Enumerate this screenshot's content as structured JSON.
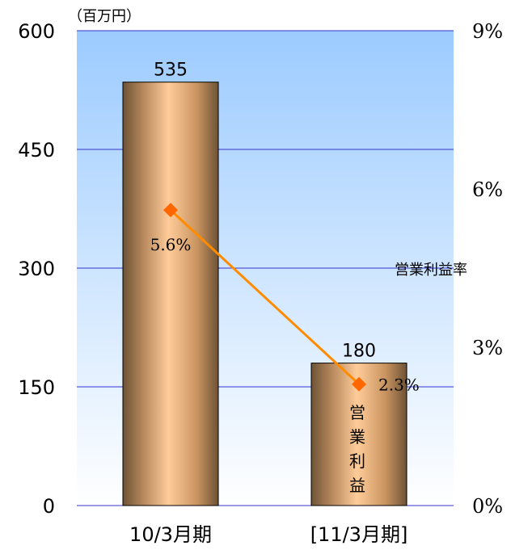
{
  "chart_data": {
    "type": "bar",
    "unit_label": "（百万円）",
    "categories": [
      "10/3月期",
      "[11/3月期]"
    ],
    "series": [
      {
        "name": "営業利益",
        "type": "bar",
        "values": [
          535,
          180
        ],
        "color": "#c89060"
      },
      {
        "name": "営業利益率",
        "type": "line",
        "axis": "right",
        "values": [
          5.6,
          2.3
        ],
        "labels": [
          "5.6%",
          "2.3%"
        ],
        "color": "#ff8c00"
      }
    ],
    "bar_labels": [
      "535",
      "180"
    ],
    "bar_inside_label": "営業利益",
    "line_series_label": "営業利益率",
    "y_left": {
      "ticks": [
        "0",
        "150",
        "300",
        "450",
        "600"
      ],
      "lim": [
        0,
        600
      ]
    },
    "y_right": {
      "ticks": [
        "0%",
        "3%",
        "6%",
        "9%"
      ],
      "lim": [
        0,
        9
      ]
    },
    "grid": true,
    "background_gradient": [
      "#9ccbff",
      "#ffffff"
    ]
  }
}
